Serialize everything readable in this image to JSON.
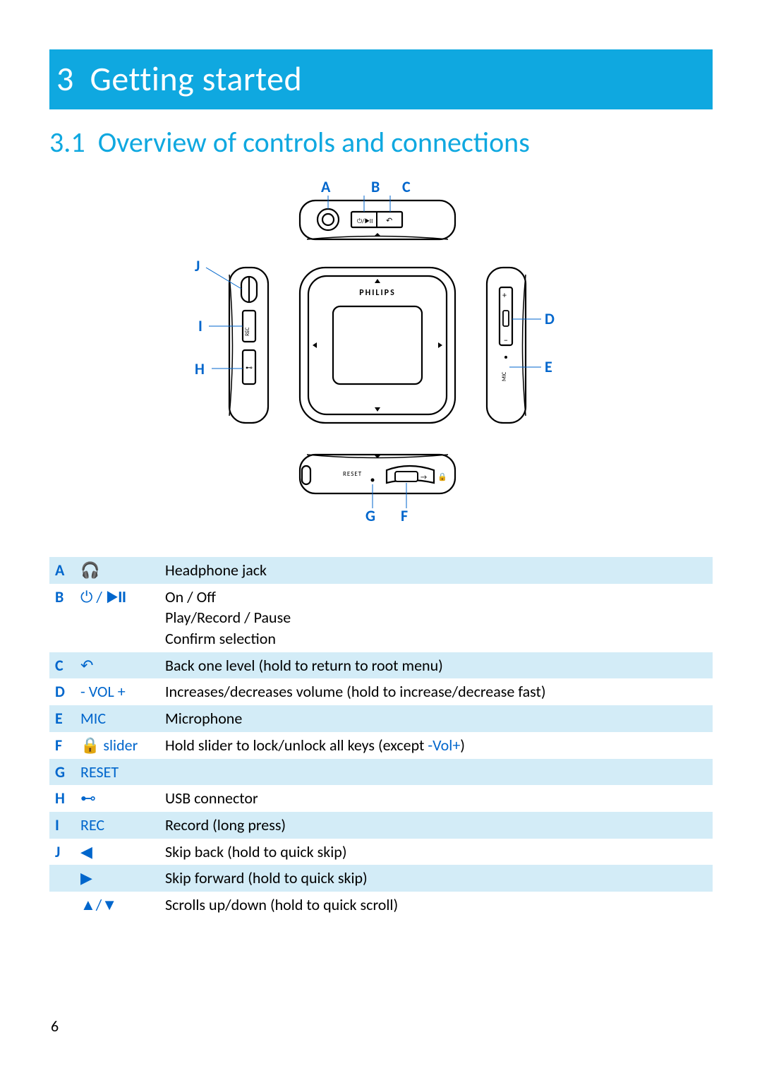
{
  "page_number": "6",
  "chapter": {
    "num": "3",
    "title": "Getting started"
  },
  "section": {
    "num": "3.1",
    "title": "Overview of controls and connections"
  },
  "diagram": {
    "brand": "PHILIPS",
    "reset_label": "RESET",
    "rec_label": "REC",
    "mic_label": "MIC",
    "callouts": {
      "A": "A",
      "B": "B",
      "C": "C",
      "D": "D",
      "E": "E",
      "F": "F",
      "G": "G",
      "H": "H",
      "I": "I",
      "J": "J"
    }
  },
  "colors": {
    "accent": "#0fa8e0",
    "label_blue": "#0066cc",
    "row_alt": "#d3ecf7",
    "text": "#000000",
    "bg": "#ffffff"
  },
  "table": {
    "rows": [
      {
        "letter": "A",
        "icon": "🎧",
        "icon_label": "headphone-icon",
        "desc": [
          "Headphone jack"
        ],
        "alt": true
      },
      {
        "letter": "B",
        "icon": "⏻ / ▶𝗜𝗜",
        "icon_label": "power-play-icon",
        "desc": [
          "On / Off",
          "Play/Record / Pause",
          "Confirm selection"
        ],
        "alt": false
      },
      {
        "letter": "C",
        "icon": "↶",
        "icon_label": "back-icon",
        "desc_pre": "Back one level (hold to return to root menu)",
        "alt": true
      },
      {
        "letter": "D",
        "icon": "- VOL +",
        "icon_label": "volume-label",
        "desc_pre": "Increases/decreases volume (hold to increase/decrease fast)",
        "alt": false
      },
      {
        "letter": "E",
        "icon": "MIC",
        "icon_label": "mic-label",
        "desc_pre": "Microphone",
        "alt": true
      },
      {
        "letter": "F",
        "icon": "🔒 slider",
        "icon_label": "lock-slider-label",
        "desc_pre": "Hold slider to lock/unlock all keys (except ",
        "desc_mid_blue": "-Vol+",
        "desc_post": ")",
        "alt": false
      },
      {
        "letter": "G",
        "icon": "RESET",
        "icon_label": "reset-label",
        "desc_pre": "",
        "alt": true
      },
      {
        "letter": "H",
        "icon": "⊷",
        "icon_label": "usb-icon",
        "desc_pre": "USB connector",
        "alt": false
      },
      {
        "letter": "I",
        "icon": "REC",
        "icon_label": "rec-label",
        "desc_pre": "Record (long press)",
        "alt": true
      },
      {
        "letter": "J",
        "icon": "◀",
        "icon_label": "left-icon",
        "desc_pre": "Skip back (hold to quick skip)",
        "alt": false
      },
      {
        "letter": "",
        "icon": "▶",
        "icon_label": "right-icon",
        "desc_pre": "Skip forward (hold to quick skip)",
        "alt": true
      },
      {
        "letter": "",
        "icon": "▲/▼",
        "icon_label": "updown-icon",
        "desc_pre": "Scrolls up/down (hold to quick scroll)",
        "alt": false
      }
    ]
  }
}
